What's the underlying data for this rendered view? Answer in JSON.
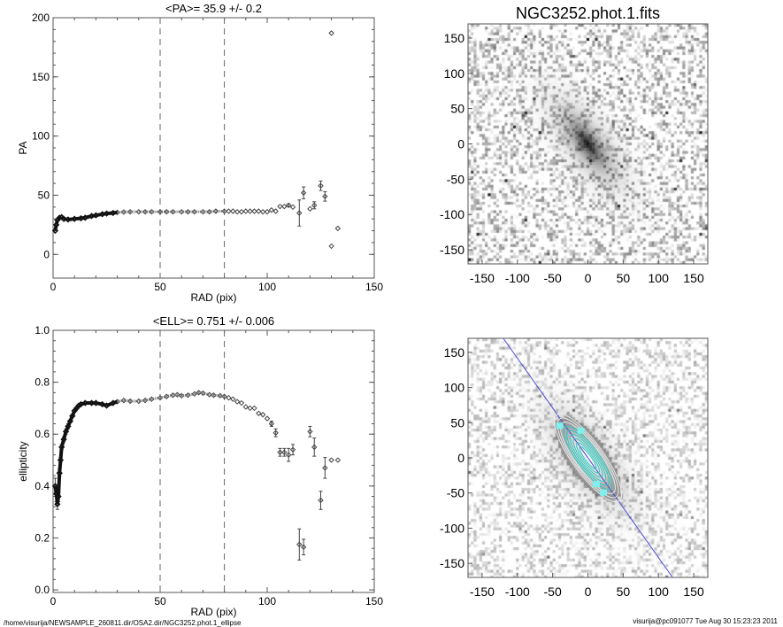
{
  "chart_data": [
    {
      "type": "scatter",
      "title": "<PA>=  35.9 +/-   0.2",
      "xlabel": "RAD (pix)",
      "ylabel": "PA",
      "xlim": [
        0,
        150
      ],
      "ylim": [
        -20,
        200
      ],
      "xticks": [
        "0",
        "50",
        "100",
        "150"
      ],
      "yticks": [
        "0",
        "50",
        "100",
        "150",
        "200"
      ],
      "xtick_values": [
        0,
        50,
        100,
        150
      ],
      "ytick_values": [
        0,
        50,
        100,
        150,
        200
      ],
      "vlines": [
        50,
        80
      ],
      "points": [
        [
          1,
          20,
          0
        ],
        [
          1.5,
          25,
          0
        ],
        [
          2,
          29,
          0
        ],
        [
          3,
          31,
          0
        ],
        [
          4,
          31.5,
          0
        ],
        [
          5,
          30,
          0
        ],
        [
          7,
          29.5,
          0
        ],
        [
          10,
          30,
          0
        ],
        [
          13,
          30.5,
          0
        ],
        [
          15,
          31,
          0
        ],
        [
          18,
          32.5,
          0
        ],
        [
          20,
          33,
          0
        ],
        [
          23,
          34,
          0
        ],
        [
          25,
          34.5,
          0
        ],
        [
          28,
          35,
          0
        ],
        [
          30,
          35.5,
          0
        ],
        [
          33,
          35.8,
          0
        ],
        [
          36,
          36,
          0
        ],
        [
          40,
          36,
          0
        ],
        [
          43,
          36,
          0
        ],
        [
          46,
          36,
          0
        ],
        [
          50,
          36,
          0
        ],
        [
          53,
          36,
          0
        ],
        [
          56,
          36,
          0
        ],
        [
          60,
          36,
          0
        ],
        [
          63,
          36,
          0
        ],
        [
          66,
          36,
          0
        ],
        [
          70,
          36,
          0
        ],
        [
          73,
          36,
          0
        ],
        [
          76,
          36.5,
          0
        ],
        [
          80,
          36.5,
          0
        ],
        [
          82,
          36.5,
          0
        ],
        [
          84,
          36.5,
          0
        ],
        [
          86,
          36,
          0
        ],
        [
          88,
          36,
          0
        ],
        [
          90,
          36.5,
          0
        ],
        [
          92,
          36.5,
          0
        ],
        [
          94,
          36.5,
          0
        ],
        [
          96,
          36.5,
          0
        ],
        [
          98,
          36,
          0
        ],
        [
          100,
          36,
          0
        ],
        [
          102,
          37.5,
          0
        ],
        [
          104,
          36.5,
          0
        ],
        [
          106,
          40.5,
          0
        ],
        [
          108,
          40.5,
          0
        ],
        [
          110,
          41.5,
          1
        ],
        [
          112,
          40,
          0
        ],
        [
          115,
          35,
          11
        ],
        [
          117,
          52,
          5
        ],
        [
          120,
          38.5,
          0
        ],
        [
          122,
          41.5,
          3
        ],
        [
          125,
          58,
          4
        ],
        [
          127,
          49,
          4
        ],
        [
          130,
          187,
          0
        ],
        [
          130,
          7,
          0
        ],
        [
          133,
          22,
          0
        ]
      ]
    },
    {
      "type": "scatter",
      "title": "<ELL>= 0.751 +/-  0.006",
      "xlabel": "RAD (pix)",
      "ylabel": "ellipticity",
      "xlim": [
        0,
        150
      ],
      "ylim": [
        -0.01,
        1.0
      ],
      "xticks": [
        "0",
        "50",
        "100",
        "150"
      ],
      "yticks": [
        "0.0",
        "0.2",
        "0.4",
        "0.6",
        "0.8",
        "1.0"
      ],
      "xtick_values": [
        0,
        50,
        100,
        150
      ],
      "ytick_values": [
        0,
        0.2,
        0.4,
        0.6,
        0.8,
        1.0
      ],
      "vlines": [
        50,
        80
      ],
      "points": [
        [
          1,
          0.4,
          0.03
        ],
        [
          1.5,
          0.37,
          0.03
        ],
        [
          2,
          0.33,
          0.02
        ],
        [
          2.5,
          0.36,
          0.02
        ],
        [
          3,
          0.45,
          0.015
        ],
        [
          3.5,
          0.5,
          0.01
        ],
        [
          4,
          0.55,
          0.01
        ],
        [
          5,
          0.58,
          0.01
        ],
        [
          6,
          0.61,
          0.01
        ],
        [
          7,
          0.63,
          0.01
        ],
        [
          8,
          0.65,
          0.005
        ],
        [
          9,
          0.67,
          0.005
        ],
        [
          10,
          0.69,
          0
        ],
        [
          11,
          0.7,
          0
        ],
        [
          12,
          0.71,
          0
        ],
        [
          13,
          0.715,
          0
        ],
        [
          15,
          0.72,
          0
        ],
        [
          18,
          0.72,
          0
        ],
        [
          20,
          0.72,
          0
        ],
        [
          23,
          0.715,
          0
        ],
        [
          25,
          0.71,
          0
        ],
        [
          28,
          0.72,
          0
        ],
        [
          30,
          0.725,
          0
        ],
        [
          33,
          0.73,
          0
        ],
        [
          36,
          0.727,
          0
        ],
        [
          40,
          0.727,
          0
        ],
        [
          43,
          0.73,
          0
        ],
        [
          46,
          0.735,
          0
        ],
        [
          50,
          0.74,
          0
        ],
        [
          53,
          0.745,
          0
        ],
        [
          56,
          0.75,
          0
        ],
        [
          58,
          0.752,
          0
        ],
        [
          60,
          0.748,
          0
        ],
        [
          63,
          0.75,
          0
        ],
        [
          66,
          0.755,
          0
        ],
        [
          68,
          0.76,
          0
        ],
        [
          70,
          0.758,
          0
        ],
        [
          73,
          0.752,
          0
        ],
        [
          75,
          0.75,
          0
        ],
        [
          78,
          0.748,
          0
        ],
        [
          80,
          0.745,
          0
        ],
        [
          82,
          0.74,
          0
        ],
        [
          84,
          0.735,
          0
        ],
        [
          86,
          0.725,
          0
        ],
        [
          88,
          0.72,
          0
        ],
        [
          90,
          0.705,
          0
        ],
        [
          92,
          0.7,
          0
        ],
        [
          94,
          0.7,
          0
        ],
        [
          96,
          0.68,
          0
        ],
        [
          98,
          0.675,
          0
        ],
        [
          100,
          0.66,
          0
        ],
        [
          102,
          0.64,
          0.01
        ],
        [
          104,
          0.605,
          0.015
        ],
        [
          106,
          0.53,
          0.015
        ],
        [
          108,
          0.53,
          0.015
        ],
        [
          110,
          0.52,
          0.025
        ],
        [
          112,
          0.54,
          0.02
        ],
        [
          115,
          0.175,
          0.06
        ],
        [
          117,
          0.165,
          0.03
        ],
        [
          120,
          0.61,
          0.02
        ],
        [
          122,
          0.55,
          0.035
        ],
        [
          125,
          0.345,
          0.035
        ],
        [
          127,
          0.47,
          0.04
        ],
        [
          130,
          0.5,
          0
        ],
        [
          133,
          0.5,
          0
        ]
      ]
    },
    {
      "type": "heatmap",
      "title": "NGC3252.phot.1.fits",
      "xlim": [
        -170,
        170
      ],
      "ylim": [
        -170,
        170
      ],
      "xticks": [
        "-150",
        "-100",
        "-50",
        "0",
        "50",
        "100",
        "150"
      ],
      "yticks": [
        "-150",
        "-100",
        "-50",
        "0",
        "50",
        "100",
        "150"
      ],
      "tick_values": [
        -150,
        -100,
        -50,
        0,
        50,
        100,
        150
      ],
      "galaxy_pa_deg": 35.9,
      "galaxy_ellipticity": 0.751
    },
    {
      "type": "heatmap",
      "title": "",
      "xlim": [
        -170,
        170
      ],
      "ylim": [
        -170,
        170
      ],
      "xticks": [
        "-150",
        "-100",
        "-50",
        "0",
        "50",
        "100",
        "150"
      ],
      "yticks": [
        "-150",
        "-100",
        "-50",
        "0",
        "50",
        "100",
        "150"
      ],
      "tick_values": [
        -150,
        -100,
        -50,
        0,
        50,
        100,
        150
      ],
      "major_axis_line": [
        [
          -120,
          170
        ],
        [
          120,
          -170
        ]
      ],
      "line_color": "#4a4ad0",
      "contour_colors": [
        "#e8e8e8",
        "#2fc8c0"
      ],
      "masked_color": "#7ff0ee"
    }
  ],
  "footer": {
    "path": "/home/visurija/NEWSAMPLE_260811.dir/OSA2.dir/NGC3252.phot.1_ellipse",
    "stamp": "visurija@pc091077  Tue Aug 30 15:23:23 2011"
  }
}
